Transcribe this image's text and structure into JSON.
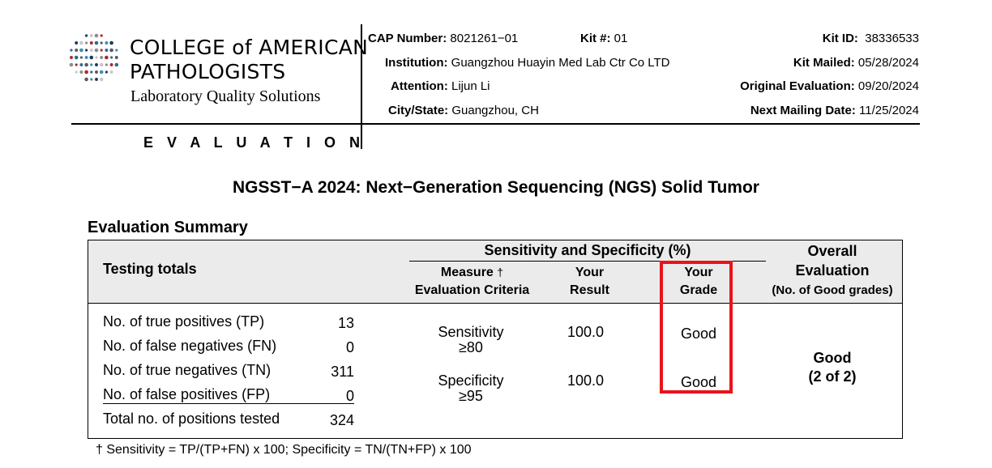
{
  "logo": {
    "line1": "COLLEGE of AMERICAN",
    "line2": "PATHOLOGISTS",
    "line3": "Laboratory Quality Solutions"
  },
  "section_label": "E V A L U A T I O N",
  "header": {
    "cap_number_label": "CAP Number:",
    "cap_number": "8021261−01",
    "kit_no_label": "Kit #:",
    "kit_no": "01",
    "institution_label": "Institution:",
    "institution": "Guangzhou Huayin Med Lab Ctr Co LTD",
    "attention_label": "Attention:",
    "attention": "Lijun Li",
    "city_state_label": "City/State:",
    "city_state": "Guangzhou, CH",
    "kit_id_label": "Kit ID:",
    "kit_id": "38336533",
    "kit_mailed_label": "Kit Mailed:",
    "kit_mailed": "05/28/2024",
    "original_eval_label": "Original Evaluation:",
    "original_eval": "09/20/2024",
    "next_mailing_label": "Next Mailing Date:",
    "next_mailing": "11/25/2024"
  },
  "title": "NGSST−A 2024: Next−Generation Sequencing (NGS) Solid Tumor",
  "summary_title": "Evaluation Summary",
  "table": {
    "testing_totals": "Testing totals",
    "sens_spec_header": "Sensitivity and Specificity (%)",
    "measure_l1": "Measure",
    "dagger": "†",
    "measure_l2": "Evaluation Criteria",
    "your_result_l1": "Your",
    "your_result_l2": "Result",
    "your_grade_l1": "Your",
    "your_grade_l2": "Grade",
    "overall_l1": "Overall",
    "overall_l2": "Evaluation",
    "overall_l3": "(No. of Good grades)",
    "totals": [
      {
        "label": "No. of true positives (TP)",
        "value": "13"
      },
      {
        "label": "No. of false negatives (FN)",
        "value": "0"
      },
      {
        "label": "No. of true negatives (TN)",
        "value": "311"
      },
      {
        "label": "No. of false positives (FP)",
        "value": "0"
      },
      {
        "label": "Total no. of positions tested",
        "value": "324"
      }
    ],
    "measures": [
      {
        "name": "Sensitivity",
        "criteria": "≥80",
        "result": "100.0",
        "grade": "Good"
      },
      {
        "name": "Specificity",
        "criteria": "≥95",
        "result": "100.0",
        "grade": "Good"
      }
    ],
    "overall_grade": "Good",
    "overall_count": "(2 of 2)"
  },
  "footnote_dagger": "†",
  "footnote": "Sensitivity = TP/(TP+FN) x 100; Specificity = TN/(TN+FP) x 100",
  "colors": {
    "highlight": "#e8141b",
    "header_bg": "#ebebeb"
  }
}
